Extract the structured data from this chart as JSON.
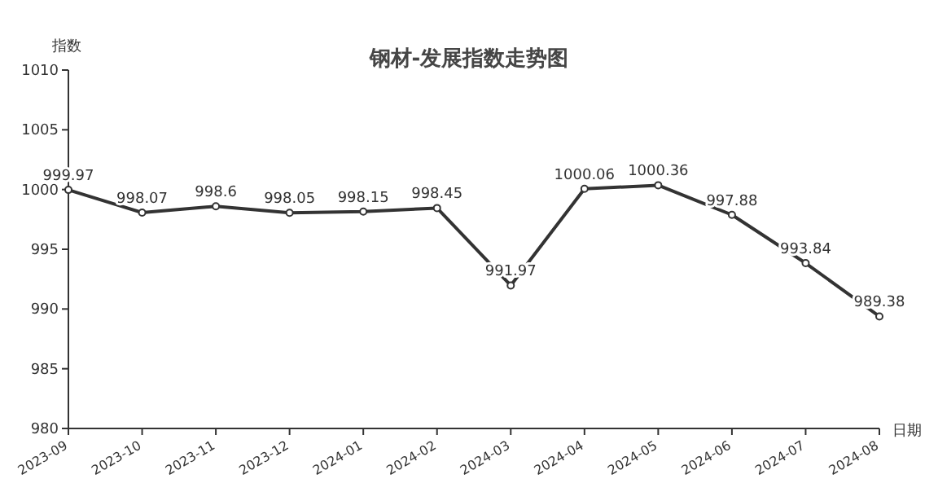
{
  "chart_data": {
    "type": "line",
    "title": "钢材-发展指数走势图",
    "ylabel": "指数",
    "xlabel": "日期",
    "categories": [
      "2023-09",
      "2023-10",
      "2023-11",
      "2023-12",
      "2024-01",
      "2024-02",
      "2024-03",
      "2024-04",
      "2024-05",
      "2024-06",
      "2024-07",
      "2024-08"
    ],
    "series": [
      {
        "color": "#333333",
        "values": [
          999.97,
          998.07,
          998.6,
          998.05,
          998.15,
          998.45,
          991.97,
          1000.06,
          1000.36,
          997.88,
          993.84,
          989.38
        ]
      }
    ],
    "ylim": [
      980,
      1010
    ],
    "yticks": [
      980,
      985,
      990,
      995,
      1000,
      1005,
      1010
    ],
    "grid": false,
    "marker": "circle",
    "line_style": "solid",
    "data_labels": true
  }
}
